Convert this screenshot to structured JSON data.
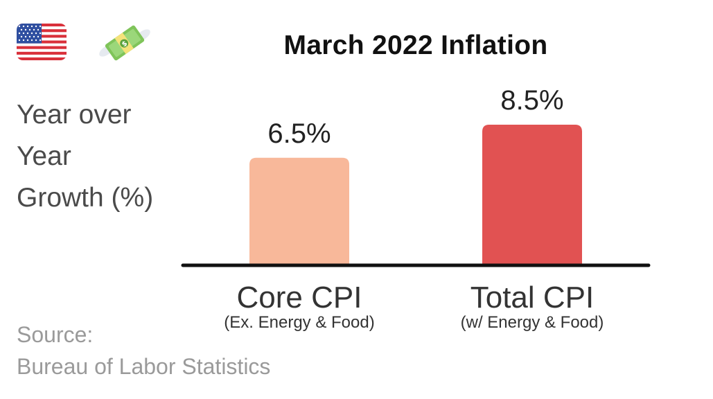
{
  "flag_icon": "us-flag-icon",
  "money_icon": "money-with-wings-icon",
  "colors": {
    "core": "#f8b89a",
    "total": "#e15252",
    "baseline": "#111111",
    "value_text": "#222222",
    "category_text": "#333333"
  },
  "chart_data": {
    "type": "bar",
    "title": "March 2022 Inflation",
    "ylabel_lines": [
      "Year over",
      "Year",
      "Growth (%)"
    ],
    "categories": [
      "Core CPI",
      "Total CPI"
    ],
    "subcategories": [
      "(Ex. Energy & Food)",
      "(w/ Energy & Food)"
    ],
    "values": [
      6.5,
      8.5
    ],
    "value_labels": [
      "6.5%",
      "8.5%"
    ],
    "ylim": [
      0,
      8.5
    ],
    "grid": false,
    "legend": "none"
  },
  "source": {
    "label": "Source:",
    "name": "Bureau of Labor Statistics"
  }
}
